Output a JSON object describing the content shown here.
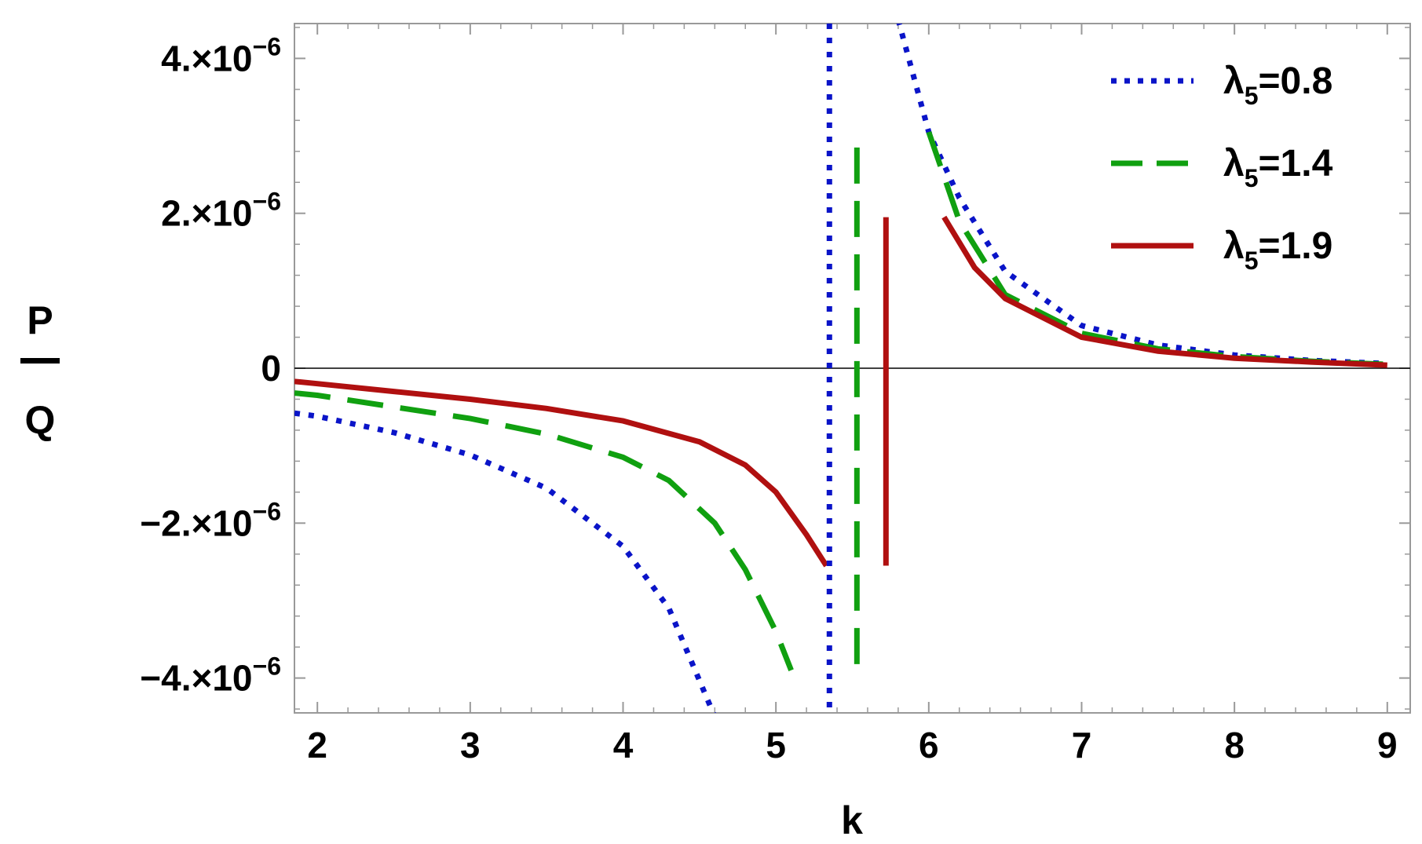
{
  "chart_data": {
    "type": "line",
    "title": "",
    "xlabel": "k",
    "ylabel": {
      "numerator": "P",
      "denominator": "Q"
    },
    "xlim": [
      1.85,
      9.15
    ],
    "ylim": [
      -4.45e-06,
      4.45e-06
    ],
    "x_ticks": [
      {
        "value": 2,
        "label": "2"
      },
      {
        "value": 3,
        "label": "3"
      },
      {
        "value": 4,
        "label": "4"
      },
      {
        "value": 5,
        "label": "5"
      },
      {
        "value": 6,
        "label": "6"
      },
      {
        "value": 7,
        "label": "7"
      },
      {
        "value": 8,
        "label": "8"
      },
      {
        "value": 9,
        "label": "9"
      }
    ],
    "y_ticks": [
      {
        "value": 4e-06,
        "mantissa": "4.",
        "exp": "−6",
        "label": "4.×10−6"
      },
      {
        "value": 2e-06,
        "mantissa": "2.",
        "exp": "−6",
        "label": "2.×10−6"
      },
      {
        "value": 0,
        "mantissa": "0",
        "exp": "",
        "label": "0"
      },
      {
        "value": -2e-06,
        "mantissa": "−2.",
        "exp": "−6",
        "label": "−2.×10−6"
      },
      {
        "value": -4e-06,
        "mantissa": "−4.",
        "exp": "−6",
        "label": "−4.×10−6"
      }
    ],
    "legend": {
      "position": "top-right"
    },
    "series": [
      {
        "name": "λ5=0.8",
        "name_main": "λ",
        "name_sub": "5",
        "name_value": "=0.8",
        "style": "dotted",
        "color": "#0a14c8",
        "k_pole": 5.35,
        "points": [
          [
            1.85,
            -5.8e-07
          ],
          [
            2.0,
            -6.2e-07
          ],
          [
            2.5,
            -8.3e-07
          ],
          [
            3.0,
            -1.12e-06
          ],
          [
            3.5,
            -1.55e-06
          ],
          [
            4.0,
            -2.3e-06
          ],
          [
            4.3,
            -3.1e-06
          ],
          [
            4.6,
            -4.5e-06
          ],
          [
            5.8,
            4.5e-06
          ],
          [
            6.0,
            3.05e-06
          ],
          [
            6.2,
            2.2e-06
          ],
          [
            6.5,
            1.25e-06
          ],
          [
            7.0,
            5.5e-07
          ],
          [
            7.5,
            3e-07
          ],
          [
            8.0,
            1.7e-07
          ],
          [
            8.5,
            1e-07
          ],
          [
            9.0,
            6e-08
          ]
        ]
      },
      {
        "name": "λ5=1.4",
        "name_main": "λ",
        "name_sub": "5",
        "name_value": "=1.4",
        "style": "dashed",
        "color": "#10a010",
        "k_pole": 5.53,
        "points": [
          [
            1.85,
            -3.2e-07
          ],
          [
            2.0,
            -3.5e-07
          ],
          [
            2.5,
            -5e-07
          ],
          [
            3.0,
            -6.5e-07
          ],
          [
            3.5,
            -8.5e-07
          ],
          [
            4.0,
            -1.15e-06
          ],
          [
            4.3,
            -1.45e-06
          ],
          [
            4.6,
            -2e-06
          ],
          [
            4.8,
            -2.6e-06
          ],
          [
            5.0,
            -3.4e-06
          ],
          [
            5.1,
            -3.9e-06
          ],
          [
            6.0,
            3.05e-06
          ],
          [
            6.2,
            1.9e-06
          ],
          [
            6.5,
            9.5e-07
          ],
          [
            7.0,
            4.5e-07
          ],
          [
            7.5,
            2.5e-07
          ],
          [
            8.0,
            1.5e-07
          ],
          [
            8.5,
            9e-08
          ],
          [
            9.0,
            5e-08
          ]
        ]
      },
      {
        "name": "λ5=1.9",
        "name_main": "λ",
        "name_sub": "5",
        "name_value": "=1.9",
        "style": "solid",
        "color": "#b01010",
        "k_pole": 5.72,
        "points": [
          [
            1.85,
            -1.7e-07
          ],
          [
            2.0,
            -2e-07
          ],
          [
            2.5,
            -3e-07
          ],
          [
            3.0,
            -4e-07
          ],
          [
            3.5,
            -5.2e-07
          ],
          [
            4.0,
            -6.8e-07
          ],
          [
            4.5,
            -9.5e-07
          ],
          [
            4.8,
            -1.25e-06
          ],
          [
            5.0,
            -1.6e-06
          ],
          [
            5.2,
            -2.15e-06
          ],
          [
            5.33,
            -2.55e-06
          ],
          [
            6.1,
            1.95e-06
          ],
          [
            6.3,
            1.3e-06
          ],
          [
            6.5,
            9e-07
          ],
          [
            7.0,
            4e-07
          ],
          [
            7.5,
            2.2e-07
          ],
          [
            8.0,
            1.3e-07
          ],
          [
            8.5,
            8e-08
          ],
          [
            9.0,
            4e-08
          ]
        ]
      }
    ],
    "pole_segments": [
      {
        "series": 0,
        "k": 5.35,
        "y_range": [
          -4.45e-06,
          4.45e-06
        ]
      },
      {
        "series": 1,
        "k": 5.53,
        "y_range": [
          -3.9e-06,
          2.85e-06
        ]
      },
      {
        "series": 2,
        "k": 5.72,
        "y_range": [
          -2.55e-06,
          1.95e-06
        ]
      }
    ]
  }
}
